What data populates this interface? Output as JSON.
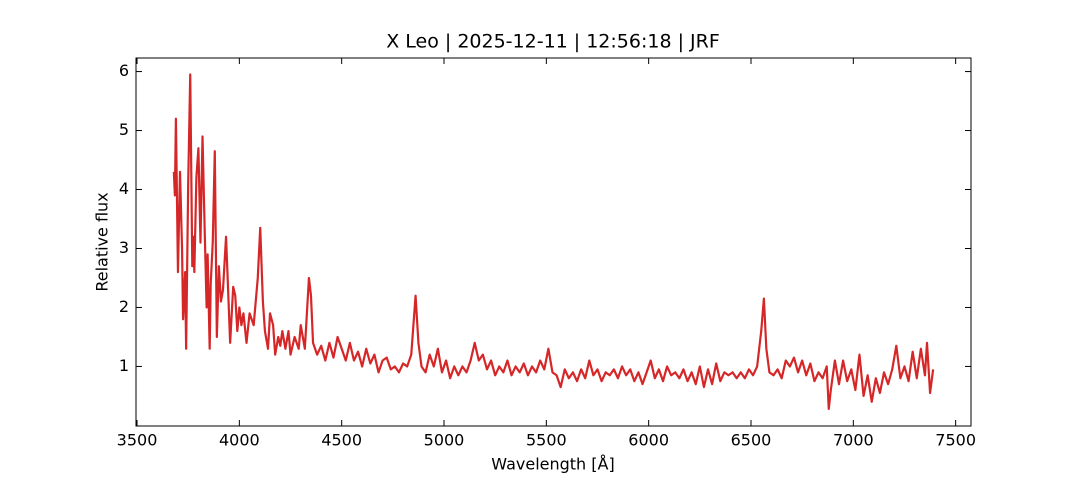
{
  "chart_data": {
    "type": "line",
    "title": "X Leo | 2025-12-11 | 12:56:18 | JRF",
    "xlabel": "Wavelength [Å]",
    "ylabel": "Relative flux",
    "xlim": [
      3495,
      7575
    ],
    "ylim": [
      -0.01,
      6.23
    ],
    "xticks": [
      3500,
      4000,
      4500,
      5000,
      5500,
      6000,
      6500,
      7000,
      7500
    ],
    "yticks": [
      1,
      2,
      3,
      4,
      5,
      6
    ],
    "grid": false,
    "series": [
      {
        "color": "#d62728",
        "x": [
          3680,
          3685,
          3690,
          3700,
          3710,
          3720,
          3725,
          3735,
          3740,
          3750,
          3760,
          3770,
          3775,
          3780,
          3790,
          3800,
          3810,
          3820,
          3830,
          3840,
          3845,
          3855,
          3860,
          3870,
          3880,
          3890,
          3900,
          3910,
          3920,
          3935,
          3945,
          3955,
          3970,
          3980,
          3990,
          4000,
          4010,
          4020,
          4035,
          4050,
          4070,
          4090,
          4102,
          4115,
          4125,
          4140,
          4150,
          4165,
          4175,
          4190,
          4200,
          4210,
          4225,
          4240,
          4250,
          4270,
          4290,
          4300,
          4320,
          4340,
          4350,
          4360,
          4380,
          4400,
          4420,
          4440,
          4460,
          4480,
          4500,
          4520,
          4540,
          4560,
          4580,
          4600,
          4620,
          4640,
          4660,
          4680,
          4700,
          4720,
          4740,
          4760,
          4780,
          4800,
          4820,
          4840,
          4861,
          4875,
          4890,
          4910,
          4930,
          4950,
          4970,
          4990,
          5010,
          5030,
          5050,
          5070,
          5090,
          5110,
          5130,
          5150,
          5170,
          5190,
          5210,
          5230,
          5250,
          5270,
          5290,
          5310,
          5330,
          5350,
          5370,
          5390,
          5410,
          5430,
          5450,
          5470,
          5490,
          5510,
          5530,
          5550,
          5570,
          5590,
          5610,
          5630,
          5650,
          5670,
          5690,
          5710,
          5730,
          5750,
          5770,
          5790,
          5810,
          5830,
          5850,
          5870,
          5890,
          5910,
          5930,
          5950,
          5970,
          5990,
          6010,
          6030,
          6050,
          6070,
          6090,
          6110,
          6130,
          6150,
          6170,
          6190,
          6210,
          6230,
          6250,
          6270,
          6290,
          6310,
          6330,
          6350,
          6370,
          6390,
          6410,
          6430,
          6450,
          6470,
          6490,
          6510,
          6530,
          6550,
          6563,
          6575,
          6590,
          6610,
          6630,
          6650,
          6670,
          6690,
          6710,
          6730,
          6750,
          6770,
          6790,
          6810,
          6830,
          6850,
          6870,
          6880,
          6890,
          6910,
          6930,
          6950,
          6970,
          6990,
          7010,
          7030,
          7050,
          7070,
          7090,
          7110,
          7130,
          7150,
          7170,
          7190,
          7210,
          7230,
          7250,
          7270,
          7290,
          7310,
          7330,
          7350,
          7360,
          7375,
          7390
        ],
        "values": [
          4.3,
          3.9,
          5.2,
          2.6,
          4.3,
          3.0,
          1.8,
          2.6,
          1.3,
          4.1,
          5.95,
          2.7,
          3.2,
          2.6,
          4.2,
          4.7,
          3.1,
          4.9,
          3.4,
          2.0,
          2.9,
          1.3,
          2.4,
          3.1,
          4.65,
          1.5,
          2.7,
          2.1,
          2.3,
          3.2,
          2.3,
          1.4,
          2.35,
          2.2,
          1.6,
          2.0,
          1.7,
          1.9,
          1.4,
          1.9,
          1.7,
          2.5,
          3.35,
          2.1,
          1.6,
          1.3,
          1.9,
          1.7,
          1.2,
          1.5,
          1.35,
          1.6,
          1.3,
          1.6,
          1.2,
          1.5,
          1.3,
          1.7,
          1.3,
          2.5,
          2.2,
          1.4,
          1.2,
          1.35,
          1.1,
          1.4,
          1.15,
          1.5,
          1.3,
          1.1,
          1.4,
          1.1,
          1.25,
          1.0,
          1.3,
          1.05,
          1.2,
          0.9,
          1.1,
          1.15,
          0.95,
          1.0,
          0.9,
          1.05,
          1.0,
          1.2,
          2.2,
          1.4,
          1.0,
          0.9,
          1.2,
          1.0,
          1.3,
          0.9,
          1.1,
          0.8,
          1.0,
          0.85,
          1.0,
          0.9,
          1.1,
          1.4,
          1.1,
          1.2,
          0.95,
          1.1,
          0.85,
          1.0,
          0.9,
          1.1,
          0.85,
          1.0,
          0.9,
          1.05,
          0.85,
          1.0,
          0.9,
          1.1,
          0.95,
          1.3,
          0.9,
          0.85,
          0.65,
          0.95,
          0.8,
          0.9,
          0.75,
          0.95,
          0.8,
          1.1,
          0.85,
          0.95,
          0.75,
          0.9,
          0.85,
          0.95,
          0.8,
          1.0,
          0.85,
          0.95,
          0.75,
          0.9,
          0.7,
          0.9,
          1.1,
          0.8,
          0.95,
          0.75,
          1.0,
          0.85,
          0.9,
          0.8,
          0.95,
          0.75,
          0.9,
          0.7,
          1.0,
          0.65,
          0.95,
          0.7,
          1.05,
          0.75,
          0.9,
          0.85,
          0.9,
          0.8,
          0.9,
          0.8,
          0.95,
          0.85,
          1.0,
          1.6,
          2.15,
          1.3,
          0.9,
          0.85,
          0.95,
          0.8,
          1.1,
          1.0,
          1.15,
          0.9,
          1.1,
          0.85,
          1.05,
          0.75,
          0.9,
          0.8,
          1.0,
          0.28,
          0.6,
          1.1,
          0.7,
          1.1,
          0.75,
          0.95,
          0.6,
          1.2,
          0.5,
          0.85,
          0.4,
          0.8,
          0.55,
          0.9,
          0.7,
          0.95,
          1.35,
          0.8,
          1.0,
          0.75,
          1.25,
          0.8,
          1.3,
          0.85,
          1.4,
          0.55,
          0.95
        ]
      }
    ]
  }
}
